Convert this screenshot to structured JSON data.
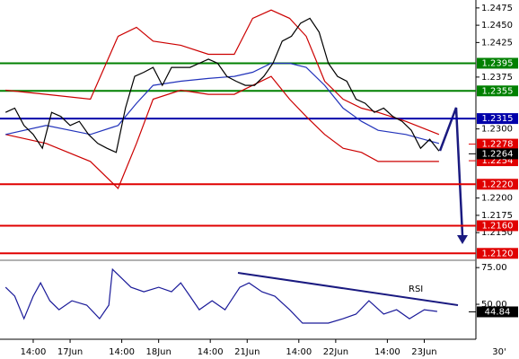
{
  "chart_data": [
    {
      "type": "line",
      "xlim": [
        -19,
        110
      ],
      "xticks": [
        {
          "value": -10,
          "label": "14:00"
        },
        {
          "value": 0,
          "label": "17Jun"
        },
        {
          "value": 14,
          "label": "14:00"
        },
        {
          "value": 24,
          "label": "18Jun"
        },
        {
          "value": 38,
          "label": "14:00"
        },
        {
          "value": 48,
          "label": "21Jun"
        },
        {
          "value": 62,
          "label": "14:00"
        },
        {
          "value": 72,
          "label": "22Jun"
        },
        {
          "value": 86,
          "label": "14:00"
        },
        {
          "value": 96,
          "label": "23Jun"
        }
      ],
      "timeframe": "30'",
      "ylim": [
        1.211,
        1.248
      ],
      "yticks": [
        1.2475,
        {
          "value": 1.245,
          "label": "1.2450"
        },
        1.2425,
        1.2375,
        {
          "value": 1.23,
          "label": "1.2300"
        },
        {
          "value": 1.22,
          "label": "1.2200"
        },
        1.2175,
        {
          "value": 1.215,
          "label": "1.2150"
        }
      ],
      "series": [
        {
          "color": "#cc0000",
          "x": [
            -17.5,
            -6.5,
            5.5,
            13,
            18,
            22.5,
            30,
            37.5,
            44.5,
            49.5,
            54.5,
            59.5,
            64,
            69,
            74,
            79,
            83.5,
            91,
            100
          ],
          "values": [
            1.2356,
            1.235,
            1.2343,
            1.2434,
            1.2447,
            1.2427,
            1.2421,
            1.2408,
            1.2408,
            1.246,
            1.2472,
            1.246,
            1.2434,
            1.2369,
            1.2343,
            1.233,
            1.2324,
            1.2311,
            1.2292
          ]
        },
        {
          "color": "#cc0000",
          "x": [
            -17.5,
            -6.5,
            5.5,
            13,
            18,
            22.5,
            30,
            37.5,
            44.5,
            49.5,
            54.5,
            59.5,
            64,
            69,
            74,
            79,
            83.5,
            91,
            100
          ],
          "values": [
            1.2292,
            1.2279,
            1.2253,
            1.2214,
            1.2279,
            1.2343,
            1.2356,
            1.235,
            1.235,
            1.2363,
            1.2376,
            1.2343,
            1.2318,
            1.2292,
            1.2272,
            1.2266,
            1.2253,
            1.2253,
            1.2253
          ]
        },
        {
          "color": "#2233bb",
          "x": [
            -17.5,
            -6.5,
            5.5,
            13,
            18,
            22.5,
            30,
            37.5,
            44.5,
            49.5,
            54.5,
            59.5,
            64,
            69,
            74,
            79,
            83.5,
            91,
            100
          ],
          "values": [
            1.2292,
            1.2305,
            1.2292,
            1.2305,
            1.2337,
            1.2363,
            1.2369,
            1.2373,
            1.2376,
            1.2382,
            1.2395,
            1.2395,
            1.2389,
            1.2363,
            1.233,
            1.2311,
            1.2298,
            1.2292,
            1.2279
          ]
        },
        {
          "color": "#000000",
          "x": [
            -17.5,
            -15,
            -12.5,
            -10,
            -7.5,
            -5,
            -2.5,
            0,
            2.5,
            5,
            7.5,
            10,
            12.5,
            15,
            17.5,
            20,
            22.5,
            25,
            27.5,
            30,
            32.5,
            35,
            37.5,
            40,
            42.5,
            45,
            47.5,
            50,
            52.5,
            55,
            57.5,
            60,
            62.5,
            65,
            67.5,
            70,
            72.5,
            75,
            77.5,
            80,
            82.5,
            85,
            87.5,
            90,
            92.5,
            95,
            97.5,
            100
          ],
          "values": [
            1.2324,
            1.233,
            1.2305,
            1.2292,
            1.2272,
            1.2324,
            1.2318,
            1.2305,
            1.2311,
            1.2292,
            1.2279,
            1.2272,
            1.2266,
            1.233,
            1.2376,
            1.2382,
            1.2389,
            1.2363,
            1.2389,
            1.2389,
            1.2389,
            1.2395,
            1.2401,
            1.2395,
            1.2376,
            1.2369,
            1.2363,
            1.2363,
            1.2376,
            1.2395,
            1.2427,
            1.2434,
            1.2453,
            1.246,
            1.244,
            1.2395,
            1.2376,
            1.2369,
            1.2343,
            1.2337,
            1.2324,
            1.233,
            1.2318,
            1.2311,
            1.2298,
            1.2272,
            1.2285,
            1.2268
          ]
        }
      ],
      "levels": {
        "values": [
          1.2395,
          1.2355,
          1.2315,
          1.222,
          1.216,
          1.212
        ],
        "value_labels": [
          "1.2395",
          "1.2355",
          "1.2315",
          "1.2220",
          "1.2160",
          "1.2120"
        ],
        "colors": [
          "#008000",
          "#008000",
          "#0000aa",
          "#e00000",
          "#e00000",
          "#e00000"
        ]
      },
      "markers": {
        "values": [
          1.2254,
          1.2278,
          1.2264
        ],
        "value_labels": [
          "1.2254",
          "1.2278",
          "1.2264"
        ],
        "colors": [
          "#e00000",
          "#e00000",
          "#000000"
        ]
      }
    },
    {
      "type": "line",
      "annotation": "RSI",
      "xlim": [
        -19,
        110
      ],
      "ylim": [
        28,
        80
      ],
      "yticks": [
        {
          "value": 75,
          "label": "75.00"
        },
        {
          "value": 50,
          "label": "50.00"
        }
      ],
      "series": [
        {
          "color": "#1a1a99",
          "x": [
            -17.5,
            -15,
            -12.5,
            -10,
            -8,
            -5.5,
            -3,
            0.5,
            4.5,
            8,
            10.5,
            11.5,
            14,
            16.5,
            20,
            24,
            27.5,
            30,
            32.5,
            35,
            38.5,
            42,
            46,
            48.5,
            52,
            55.5,
            59.5,
            63,
            66.5,
            70,
            74,
            77.5,
            81,
            85,
            88.5,
            92,
            96,
            99.5
          ],
          "values": [
            61.6,
            55.5,
            40.2,
            55.5,
            64.6,
            52.4,
            46.3,
            52.4,
            49.4,
            40.2,
            49.4,
            73.8,
            67.7,
            61.6,
            58.5,
            61.6,
            58.5,
            64.6,
            55.5,
            46.3,
            52.4,
            46.3,
            61.6,
            64.6,
            58.5,
            55.5,
            46.3,
            37.2,
            37.2,
            37.2,
            40.2,
            43.3,
            52.4,
            43.3,
            46.3,
            40.2,
            46.3,
            45.1
          ]
        }
      ],
      "markers": {
        "values": [
          44.84
        ],
        "value_labels": [
          "44.84"
        ],
        "colors": [
          "#000000"
        ]
      }
    }
  ]
}
